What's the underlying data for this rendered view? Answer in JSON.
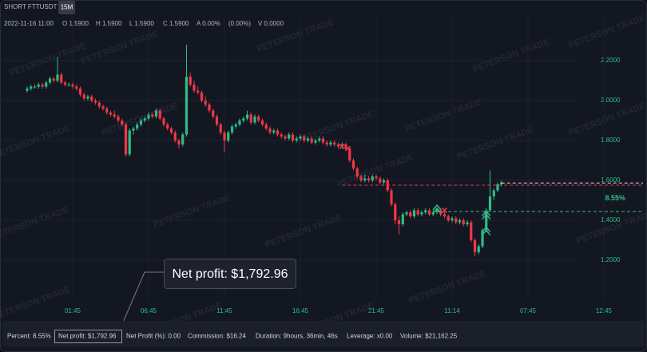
{
  "header": {
    "symbol": "SHORT FTTUSDT",
    "interval": "15M",
    "info": [
      "2022-11-16 11:00",
      "O 1.5900",
      "H 1.5900",
      "L 1.5900",
      "C 1.5900",
      "A 0.00%",
      "(0.00%)",
      "V 0.0000"
    ]
  },
  "watermark": "PETERSON TRADE",
  "callout": "Net profit: $1,792.96",
  "footer": [
    "Percent: 8.55%",
    "Net profit: $1,792.96",
    "Net Profit (%): 0.00",
    "Commission: $16.24",
    "Duration: 9hours, 36min, 46s",
    "Leverage: x0.00",
    "Volume: $21,162.25"
  ],
  "chart_data": {
    "type": "candlestick",
    "up_color": "#2ebd85",
    "down_color": "#f23645",
    "grid": true,
    "xlim": [
      -7.158,
      163.368
    ],
    "ylim": [
      1.0,
      2.42
    ],
    "xticks": [
      {
        "value": 12,
        "label": "01:45"
      },
      {
        "value": 32,
        "label": "06:45"
      },
      {
        "value": 52,
        "label": "11:45"
      },
      {
        "value": 72,
        "label": "16:45"
      },
      {
        "value": 92,
        "label": "21:45"
      },
      {
        "value": 112,
        "label": "11:14"
      },
      {
        "value": 132,
        "label": "07:45"
      },
      {
        "value": 152,
        "label": "12:45"
      }
    ],
    "yticks": [
      {
        "value": 1.2,
        "label": "1.2000"
      },
      {
        "value": 1.4,
        "label": "1.4000"
      },
      {
        "value": 1.6,
        "label": "1.6000"
      },
      {
        "value": 1.8,
        "label": "1.8000"
      },
      {
        "value": 2.0,
        "label": "2.0000"
      },
      {
        "value": 2.2,
        "label": "2.2000"
      }
    ],
    "ohlc": [
      [
        2.05,
        2.07,
        2.04,
        2.06
      ],
      [
        2.06,
        2.08,
        2.05,
        2.07
      ],
      [
        2.07,
        2.08,
        2.06,
        2.07
      ],
      [
        2.07,
        2.09,
        2.06,
        2.08
      ],
      [
        2.08,
        2.09,
        2.06,
        2.07
      ],
      [
        2.07,
        2.1,
        2.06,
        2.09
      ],
      [
        2.09,
        2.12,
        2.08,
        2.11
      ],
      [
        2.11,
        2.12,
        2.09,
        2.1
      ],
      [
        2.1,
        2.22,
        2.09,
        2.13
      ],
      [
        2.13,
        2.14,
        2.08,
        2.09
      ],
      [
        2.09,
        2.1,
        2.07,
        2.08
      ],
      [
        2.08,
        2.09,
        2.07,
        2.08
      ],
      [
        2.08,
        2.09,
        2.06,
        2.07
      ],
      [
        2.07,
        2.08,
        2.05,
        2.06
      ],
      [
        2.06,
        2.07,
        2.02,
        2.03
      ],
      [
        2.03,
        2.04,
        2.0,
        2.01
      ],
      [
        2.01,
        2.03,
        2.0,
        2.02
      ],
      [
        2.02,
        2.03,
        1.99,
        2.0
      ],
      [
        2.0,
        2.01,
        1.98,
        1.99
      ],
      [
        1.99,
        2.0,
        1.96,
        1.97
      ],
      [
        1.97,
        1.98,
        1.95,
        1.96
      ],
      [
        1.96,
        1.97,
        1.93,
        1.94
      ],
      [
        1.94,
        1.95,
        1.92,
        1.93
      ],
      [
        1.93,
        1.95,
        1.91,
        1.92
      ],
      [
        1.92,
        1.93,
        1.89,
        1.9
      ],
      [
        1.9,
        1.91,
        1.87,
        1.88
      ],
      [
        1.88,
        1.89,
        1.72,
        1.73
      ],
      [
        1.73,
        1.86,
        1.72,
        1.85
      ],
      [
        1.85,
        1.87,
        1.83,
        1.86
      ],
      [
        1.86,
        1.89,
        1.85,
        1.88
      ],
      [
        1.88,
        1.91,
        1.87,
        1.9
      ],
      [
        1.9,
        1.92,
        1.89,
        1.91
      ],
      [
        1.91,
        1.94,
        1.9,
        1.93
      ],
      [
        1.93,
        1.94,
        1.91,
        1.92
      ],
      [
        1.92,
        1.96,
        1.91,
        1.95
      ],
      [
        1.95,
        1.96,
        1.9,
        1.91
      ],
      [
        1.91,
        1.92,
        1.87,
        1.88
      ],
      [
        1.88,
        1.89,
        1.85,
        1.86
      ],
      [
        1.86,
        1.87,
        1.83,
        1.84
      ],
      [
        1.84,
        1.85,
        1.79,
        1.8
      ],
      [
        1.8,
        1.81,
        1.76,
        1.78
      ],
      [
        1.78,
        1.84,
        1.77,
        1.83
      ],
      [
        1.83,
        2.28,
        1.82,
        2.12
      ],
      [
        2.12,
        2.14,
        2.07,
        2.08
      ],
      [
        2.08,
        2.1,
        2.04,
        2.05
      ],
      [
        2.05,
        2.07,
        2.03,
        2.04
      ],
      [
        2.04,
        2.05,
        1.99,
        2.0
      ],
      [
        2.0,
        2.02,
        1.97,
        1.98
      ],
      [
        1.98,
        1.99,
        1.94,
        1.95
      ],
      [
        1.95,
        1.96,
        1.91,
        1.92
      ],
      [
        1.92,
        1.93,
        1.87,
        1.88
      ],
      [
        1.88,
        1.89,
        1.83,
        1.84
      ],
      [
        1.84,
        1.85,
        1.74,
        1.8
      ],
      [
        1.8,
        1.85,
        1.79,
        1.84
      ],
      [
        1.84,
        1.88,
        1.83,
        1.87
      ],
      [
        1.87,
        1.89,
        1.86,
        1.88
      ],
      [
        1.88,
        1.91,
        1.87,
        1.9
      ],
      [
        1.9,
        1.92,
        1.89,
        1.91
      ],
      [
        1.91,
        1.95,
        1.9,
        1.93
      ],
      [
        1.93,
        1.94,
        1.88,
        1.89
      ],
      [
        1.89,
        1.93,
        1.88,
        1.92
      ],
      [
        1.92,
        1.93,
        1.89,
        1.9
      ],
      [
        1.9,
        1.91,
        1.87,
        1.88
      ],
      [
        1.88,
        1.89,
        1.85,
        1.86
      ],
      [
        1.86,
        1.87,
        1.83,
        1.84
      ],
      [
        1.84,
        1.86,
        1.83,
        1.85
      ],
      [
        1.85,
        1.86,
        1.82,
        1.83
      ],
      [
        1.83,
        1.84,
        1.81,
        1.82
      ],
      [
        1.82,
        1.83,
        1.8,
        1.81
      ],
      [
        1.81,
        1.84,
        1.8,
        1.83
      ],
      [
        1.83,
        1.84,
        1.79,
        1.8
      ],
      [
        1.8,
        1.82,
        1.79,
        1.81
      ],
      [
        1.81,
        1.83,
        1.8,
        1.82
      ],
      [
        1.82,
        1.83,
        1.79,
        1.8
      ],
      [
        1.8,
        1.82,
        1.79,
        1.81
      ],
      [
        1.81,
        1.82,
        1.78,
        1.79
      ],
      [
        1.79,
        1.81,
        1.78,
        1.8
      ],
      [
        1.8,
        1.82,
        1.79,
        1.81
      ],
      [
        1.81,
        1.82,
        1.78,
        1.79
      ],
      [
        1.79,
        1.8,
        1.77,
        1.78
      ],
      [
        1.78,
        1.8,
        1.77,
        1.79
      ],
      [
        1.79,
        1.8,
        1.77,
        1.78
      ],
      [
        1.78,
        1.79,
        1.76,
        1.77
      ],
      [
        1.77,
        1.79,
        1.76,
        1.78
      ],
      [
        1.78,
        1.79,
        1.75,
        1.76
      ],
      [
        1.76,
        1.77,
        1.69,
        1.7
      ],
      [
        1.7,
        1.71,
        1.65,
        1.66
      ],
      [
        1.66,
        1.67,
        1.61,
        1.62
      ],
      [
        1.62,
        1.63,
        1.59,
        1.6
      ],
      [
        1.6,
        1.63,
        1.59,
        1.61
      ],
      [
        1.61,
        1.62,
        1.59,
        1.6
      ],
      [
        1.6,
        1.63,
        1.59,
        1.62
      ],
      [
        1.62,
        1.63,
        1.6,
        1.61
      ],
      [
        1.61,
        1.62,
        1.58,
        1.59
      ],
      [
        1.59,
        1.61,
        1.58,
        1.6
      ],
      [
        1.6,
        1.61,
        1.54,
        1.55
      ],
      [
        1.55,
        1.56,
        1.47,
        1.48
      ],
      [
        1.48,
        1.49,
        1.38,
        1.4
      ],
      [
        1.4,
        1.42,
        1.33,
        1.38
      ],
      [
        1.38,
        1.44,
        1.37,
        1.43
      ],
      [
        1.43,
        1.45,
        1.42,
        1.44
      ],
      [
        1.44,
        1.45,
        1.41,
        1.42
      ],
      [
        1.42,
        1.46,
        1.41,
        1.45
      ],
      [
        1.45,
        1.46,
        1.42,
        1.43
      ],
      [
        1.43,
        1.45,
        1.42,
        1.44
      ],
      [
        1.44,
        1.46,
        1.43,
        1.45
      ],
      [
        1.45,
        1.46,
        1.42,
        1.43
      ],
      [
        1.43,
        1.45,
        1.42,
        1.44
      ],
      [
        1.44,
        1.46,
        1.43,
        1.45
      ],
      [
        1.45,
        1.46,
        1.42,
        1.43
      ],
      [
        1.43,
        1.44,
        1.41,
        1.42
      ],
      [
        1.42,
        1.43,
        1.39,
        1.4
      ],
      [
        1.4,
        1.42,
        1.39,
        1.41
      ],
      [
        1.41,
        1.42,
        1.38,
        1.39
      ],
      [
        1.39,
        1.41,
        1.38,
        1.4
      ],
      [
        1.4,
        1.41,
        1.37,
        1.38
      ],
      [
        1.38,
        1.4,
        1.37,
        1.39
      ],
      [
        1.39,
        1.4,
        1.29,
        1.3
      ],
      [
        1.3,
        1.31,
        1.22,
        1.24
      ],
      [
        1.24,
        1.28,
        1.23,
        1.27
      ],
      [
        1.27,
        1.36,
        1.26,
        1.35
      ],
      [
        1.35,
        1.46,
        1.34,
        1.45
      ],
      [
        1.45,
        1.65,
        1.44,
        1.52
      ],
      [
        1.52,
        1.56,
        1.5,
        1.55
      ],
      [
        1.55,
        1.59,
        1.54,
        1.58
      ],
      [
        1.58,
        1.6,
        1.57,
        1.59
      ]
    ],
    "levels": [
      {
        "value": 1.587,
        "from": 125,
        "color": "#e0e3eb"
      },
      {
        "value": 1.576,
        "from": 83,
        "color": "#f23645"
      },
      {
        "value": 1.444,
        "from": 108,
        "color": "#2ebd85"
      }
    ],
    "markers": [
      {
        "x": 83,
        "y": 1.77,
        "shape": "cross",
        "color": "#f23645"
      },
      {
        "x": 84.5,
        "y": 1.76,
        "shape": "cross",
        "color": "#f23645"
      },
      {
        "x": 108,
        "y": 1.46,
        "shape": "chevron",
        "color": "#2ebd85"
      },
      {
        "x": 110,
        "y": 1.45,
        "shape": "cross",
        "color": "#f23645"
      },
      {
        "x": 121,
        "y": 1.43,
        "shape": "chevron",
        "color": "#2ebd85"
      },
      {
        "x": 121,
        "y": 1.35,
        "shape": "chevron",
        "color": "#2ebd85"
      }
    ],
    "annotation": {
      "text": "8.55%",
      "x": 155,
      "y": 1.51,
      "color": "#2ebd85"
    }
  }
}
